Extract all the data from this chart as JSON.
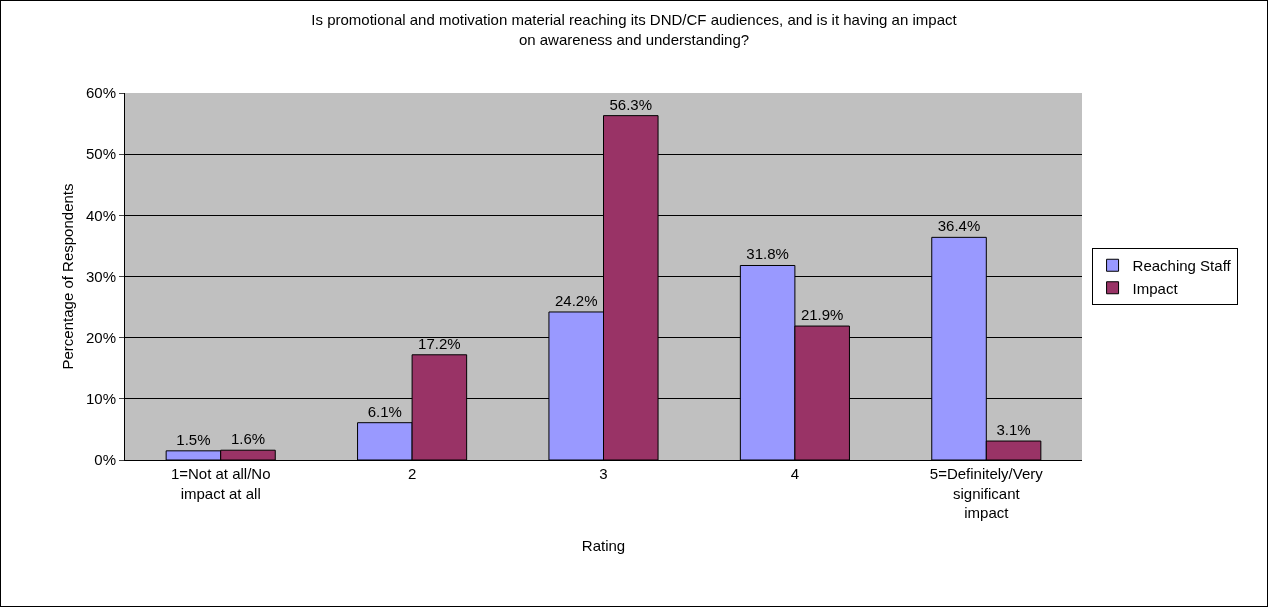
{
  "chart_data": {
    "type": "bar",
    "title": "Is promotional and motivation material reaching its DND/CF audiences, and is it having an impact on awareness and understanding?",
    "xlabel": "Rating",
    "ylabel": "Percentage of Respondents",
    "categories": [
      "1=Not at all/No impact at all",
      "2",
      "3",
      "4",
      "5=Definitely/Very significant impact"
    ],
    "series": [
      {
        "name": "Reaching Staff",
        "color": "#9999ff",
        "values": [
          1.5,
          6.1,
          24.2,
          31.8,
          36.4
        ],
        "value_labels": [
          "1.5%",
          "6.1%",
          "24.2%",
          "31.8%",
          "36.4%"
        ]
      },
      {
        "name": "Impact",
        "color": "#993366",
        "values": [
          1.6,
          17.2,
          56.3,
          21.9,
          3.1
        ],
        "value_labels": [
          "1.6%",
          "17.2%",
          "56.3%",
          "21.9%",
          "3.1%"
        ]
      }
    ],
    "ylim": [
      0,
      60
    ],
    "yticks": [
      {
        "value": 0,
        "label": "0%"
      },
      {
        "value": 10,
        "label": "10%"
      },
      {
        "value": 20,
        "label": "20%"
      },
      {
        "value": 30,
        "label": "30%"
      },
      {
        "value": 40,
        "label": "40%"
      },
      {
        "value": 50,
        "label": "50%"
      },
      {
        "value": 60,
        "label": "60%"
      }
    ],
    "grid": "y",
    "legend": "right"
  }
}
